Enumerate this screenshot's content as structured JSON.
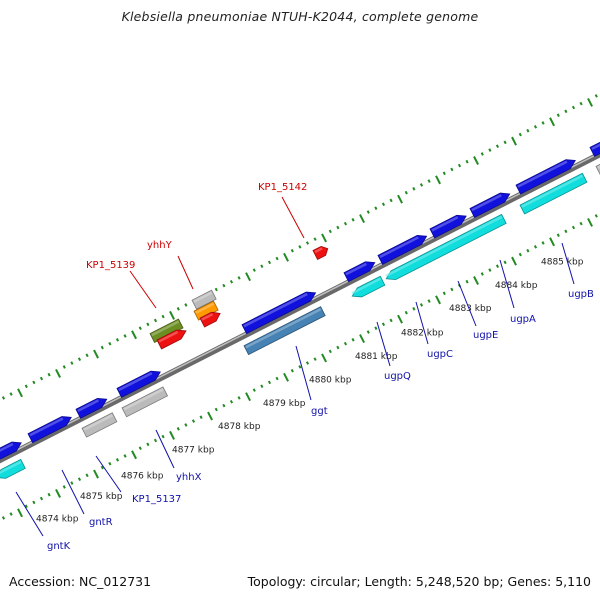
{
  "title": "Klebsiella pneumoniae NTUH-K2044, complete genome",
  "footer": {
    "accession": "Accession: NC_012731",
    "summary": "Topology: circular; Length: 5,248,520 bp; Genes: 5,110"
  },
  "colors": {
    "backbone": "#8c8c8c",
    "forward_cds": "#1111dd",
    "reverse_cds": "#11dddd",
    "grey_cds": "#bbbbbb",
    "red_feature": "#ee1111",
    "green_feature": "#6b8e23",
    "orange_feature": "#ff9900",
    "steelblue_cds": "#4682b4",
    "tick": "#228b22",
    "ruler_label": "#222222",
    "gene_label": "#1111aa",
    "highlight_label": "#cc0000"
  },
  "ruler_labels": [
    "4874 kbp",
    "4875 kbp",
    "4876 kbp",
    "4877 kbp",
    "4878 kbp",
    "4879 kbp",
    "4880 kbp",
    "4881 kbp",
    "4882 kbp",
    "4883 kbp",
    "4884 kbp",
    "4885 kbp"
  ],
  "gene_labels": [
    {
      "text": "gntK",
      "kind": "gene"
    },
    {
      "text": "gntR",
      "kind": "gene"
    },
    {
      "text": "KP1_5137",
      "kind": "gene"
    },
    {
      "text": "yhhX",
      "kind": "gene"
    },
    {
      "text": "ggt",
      "kind": "gene"
    },
    {
      "text": "ugpQ",
      "kind": "gene"
    },
    {
      "text": "ugpC",
      "kind": "gene"
    },
    {
      "text": "ugpE",
      "kind": "gene"
    },
    {
      "text": "ugpA",
      "kind": "gene"
    },
    {
      "text": "ugpB",
      "kind": "gene"
    },
    {
      "text": "KP1_5139",
      "kind": "highlight"
    },
    {
      "text": "yhhY",
      "kind": "highlight"
    },
    {
      "text": "KP1_5142",
      "kind": "highlight"
    }
  ]
}
